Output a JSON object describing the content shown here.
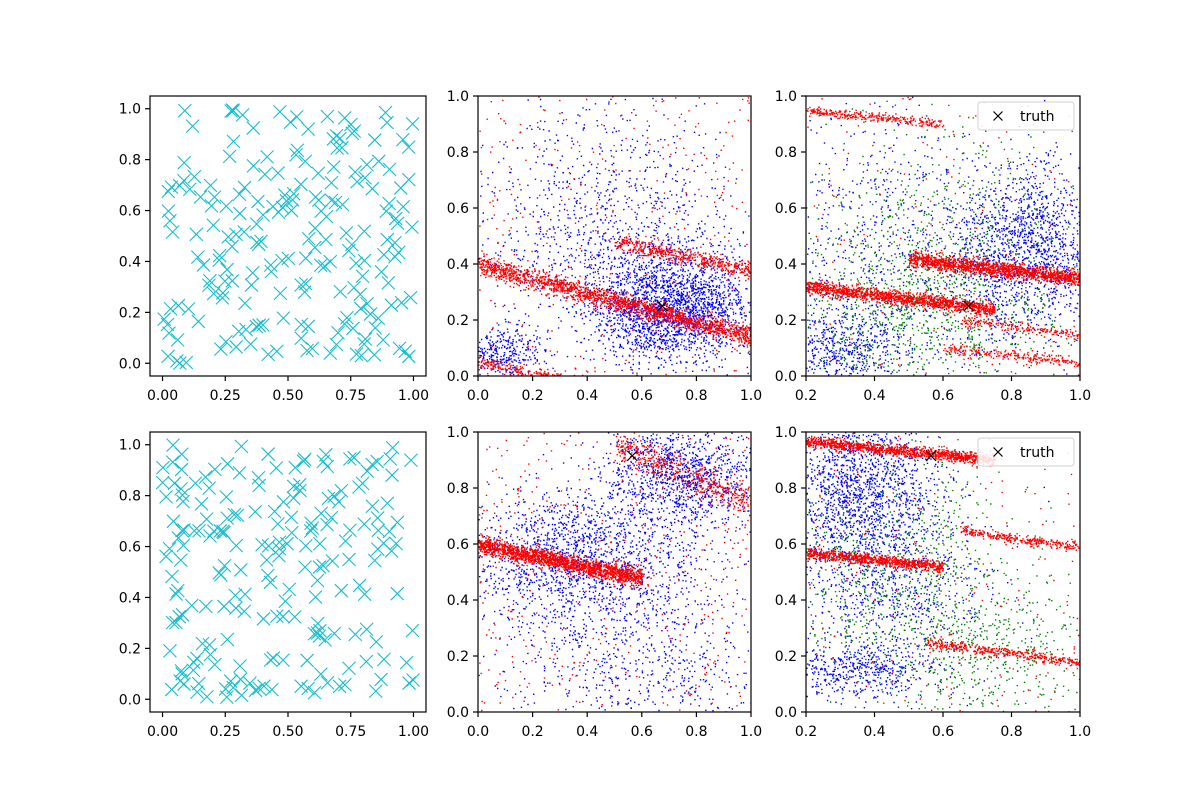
{
  "figure": {
    "layout": "2 rows x 3 columns",
    "background": "#ffffff"
  },
  "colors": {
    "samples": "#17becf",
    "series_a": "#0000ff",
    "series_b": "#ff0000",
    "series_c": "#008000",
    "truth": "#000000"
  },
  "legend_label": "truth",
  "chart_data": [
    {
      "panel": "row1-col1",
      "type": "scatter",
      "marker": "x",
      "color": "#17becf",
      "xlim": [
        -0.05,
        1.05
      ],
      "ylim": [
        -0.05,
        1.05
      ],
      "xticks": [
        "0.00",
        "0.25",
        "0.50",
        "0.75",
        "1.00"
      ],
      "yticks": [
        "0.0",
        "0.2",
        "0.4",
        "0.6",
        "0.8",
        "1.0"
      ],
      "series": [
        {
          "points": "uniform",
          "count": 200,
          "x_range": [
            0,
            1
          ],
          "y_range": [
            0,
            1
          ],
          "seed": 11
        }
      ]
    },
    {
      "panel": "row1-col2",
      "type": "scatter",
      "marker": "dot",
      "xlim": [
        0,
        1
      ],
      "ylim": [
        0,
        1
      ],
      "xticks": [
        "0.0",
        "0.2",
        "0.4",
        "0.6",
        "0.8",
        "1.0"
      ],
      "yticks": [
        "0.0",
        "0.2",
        "0.4",
        "0.6",
        "0.8",
        "1.0"
      ],
      "series": [
        {
          "color": "#0000ff",
          "clusters": [
            {
              "count": 2200,
              "cx": 0.7,
              "cy": 0.25,
              "sx": 0.15,
              "sy": 0.1
            },
            {
              "count": 1000,
              "cx": 0.45,
              "cy": 0.55,
              "sx": 0.25,
              "sy": 0.22
            },
            {
              "count": 350,
              "cx": 0.08,
              "cy": 0.08,
              "sx": 0.08,
              "sy": 0.05
            }
          ]
        },
        {
          "color": "#ff0000",
          "bands": [
            {
              "x0": 0.0,
              "y0": 0.4,
              "x1": 1.0,
              "y1": 0.14,
              "count": 1800,
              "width": 0.018
            },
            {
              "x0": 0.0,
              "y0": 0.05,
              "x1": 1.0,
              "y1": -0.15,
              "count": 700,
              "width": 0.012
            },
            {
              "x0": 0.5,
              "y0": 0.48,
              "x1": 1.0,
              "y1": 0.38,
              "count": 500,
              "width": 0.015
            }
          ],
          "scatter": {
            "count": 350
          }
        }
      ],
      "truth": {
        "x": 0.675,
        "y": 0.25
      }
    },
    {
      "panel": "row1-col3",
      "type": "scatter",
      "marker": "dot",
      "xlim": [
        0.2,
        1
      ],
      "ylim": [
        0,
        1
      ],
      "xticks": [
        "0.2",
        "0.4",
        "0.6",
        "0.8",
        "1.0"
      ],
      "yticks": [
        "0.0",
        "0.2",
        "0.4",
        "0.6",
        "0.8",
        "1.0"
      ],
      "series": [
        {
          "color": "#0000ff",
          "clusters": [
            {
              "count": 1600,
              "cx": 0.85,
              "cy": 0.45,
              "sx": 0.12,
              "sy": 0.15
            },
            {
              "count": 900,
              "cx": 0.4,
              "cy": 0.4,
              "sx": 0.2,
              "sy": 0.3
            },
            {
              "count": 500,
              "cx": 0.3,
              "cy": 0.1,
              "sx": 0.1,
              "sy": 0.07
            }
          ]
        },
        {
          "color": "#008000",
          "clusters": [
            {
              "count": 900,
              "cx": 0.6,
              "cy": 0.4,
              "sx": 0.2,
              "sy": 0.25
            },
            {
              "count": 500,
              "cx": 0.45,
              "cy": 0.2,
              "sx": 0.2,
              "sy": 0.15
            }
          ]
        },
        {
          "color": "#ff0000",
          "bands": [
            {
              "x0": 0.2,
              "y0": 0.32,
              "x1": 0.75,
              "y1": 0.24,
              "count": 1400,
              "width": 0.012
            },
            {
              "x0": 0.5,
              "y0": 0.42,
              "x1": 1.0,
              "y1": 0.35,
              "count": 1500,
              "width": 0.014
            },
            {
              "x0": 0.2,
              "y0": 0.95,
              "x1": 0.6,
              "y1": 0.9,
              "count": 300,
              "width": 0.008
            },
            {
              "x0": 0.65,
              "y0": 0.2,
              "x1": 1.0,
              "y1": 0.15,
              "count": 200,
              "width": 0.01
            },
            {
              "x0": 0.6,
              "y0": 0.1,
              "x1": 1.0,
              "y1": 0.05,
              "count": 250,
              "width": 0.01
            }
          ],
          "scatter": {
            "count": 150
          }
        }
      ],
      "truth": {
        "x": 0.675,
        "y": 0.25
      },
      "legend": {
        "entries": [
          "truth"
        ],
        "marker": "x",
        "position": "upper right"
      }
    },
    {
      "panel": "row2-col1",
      "type": "scatter",
      "marker": "x",
      "color": "#17becf",
      "xlim": [
        -0.05,
        1.05
      ],
      "ylim": [
        -0.05,
        1.05
      ],
      "xticks": [
        "0.00",
        "0.25",
        "0.50",
        "0.75",
        "1.00"
      ],
      "yticks": [
        "0.0",
        "0.2",
        "0.4",
        "0.6",
        "0.8",
        "1.0"
      ],
      "series": [
        {
          "points": "uniform",
          "count": 200,
          "x_range": [
            0,
            1
          ],
          "y_range": [
            0,
            1
          ],
          "seed": 23
        }
      ]
    },
    {
      "panel": "row2-col2",
      "type": "scatter",
      "marker": "dot",
      "xlim": [
        0,
        1
      ],
      "ylim": [
        0,
        1
      ],
      "xticks": [
        "0.0",
        "0.2",
        "0.4",
        "0.6",
        "0.8",
        "1.0"
      ],
      "yticks": [
        "0.0",
        "0.2",
        "0.4",
        "0.6",
        "0.8",
        "1.0"
      ],
      "series": [
        {
          "color": "#0000ff",
          "clusters": [
            {
              "count": 1500,
              "cx": 0.35,
              "cy": 0.55,
              "sx": 0.2,
              "sy": 0.12
            },
            {
              "count": 1200,
              "cx": 0.75,
              "cy": 0.85,
              "sx": 0.15,
              "sy": 0.1
            },
            {
              "count": 800,
              "cx": 0.6,
              "cy": 0.2,
              "sx": 0.25,
              "sy": 0.18
            }
          ]
        },
        {
          "color": "#ff0000",
          "bands": [
            {
              "x0": 0.0,
              "y0": 0.6,
              "x1": 0.6,
              "y1": 0.48,
              "count": 1800,
              "width": 0.016
            },
            {
              "x0": 0.5,
              "y0": 0.95,
              "x1": 1.0,
              "y1": 0.75,
              "count": 500,
              "width": 0.03
            }
          ],
          "scatter": {
            "count": 450
          }
        }
      ],
      "truth": {
        "x": 0.565,
        "y": 0.915
      }
    },
    {
      "panel": "row2-col3",
      "type": "scatter",
      "marker": "dot",
      "xlim": [
        0.2,
        1
      ],
      "ylim": [
        0,
        1
      ],
      "xticks": [
        "0.2",
        "0.4",
        "0.6",
        "0.8",
        "1.0"
      ],
      "yticks": [
        "0.0",
        "0.2",
        "0.4",
        "0.6",
        "0.8",
        "1.0"
      ],
      "series": [
        {
          "color": "#0000ff",
          "clusters": [
            {
              "count": 1600,
              "cx": 0.35,
              "cy": 0.8,
              "sx": 0.12,
              "sy": 0.15
            },
            {
              "count": 700,
              "cx": 0.45,
              "cy": 0.45,
              "sx": 0.15,
              "sy": 0.15
            },
            {
              "count": 500,
              "cx": 0.35,
              "cy": 0.15,
              "sx": 0.12,
              "sy": 0.05
            }
          ]
        },
        {
          "color": "#008000",
          "clusters": [
            {
              "count": 900,
              "cx": 0.45,
              "cy": 0.5,
              "sx": 0.2,
              "sy": 0.22
            },
            {
              "count": 500,
              "cx": 0.75,
              "cy": 0.2,
              "sx": 0.15,
              "sy": 0.15
            }
          ]
        },
        {
          "color": "#ff0000",
          "bands": [
            {
              "x0": 0.2,
              "y0": 0.97,
              "x1": 0.75,
              "y1": 0.9,
              "count": 1200,
              "width": 0.01
            },
            {
              "x0": 0.2,
              "y0": 0.57,
              "x1": 0.6,
              "y1": 0.52,
              "count": 800,
              "width": 0.01
            },
            {
              "x0": 0.65,
              "y0": 0.65,
              "x1": 1.0,
              "y1": 0.59,
              "count": 300,
              "width": 0.008
            },
            {
              "x0": 0.55,
              "y0": 0.25,
              "x1": 1.0,
              "y1": 0.18,
              "count": 400,
              "width": 0.01
            }
          ],
          "scatter": {
            "count": 200
          }
        }
      ],
      "truth": {
        "x": 0.565,
        "y": 0.915
      },
      "legend": {
        "entries": [
          "truth"
        ],
        "marker": "x",
        "position": "upper right"
      }
    }
  ]
}
